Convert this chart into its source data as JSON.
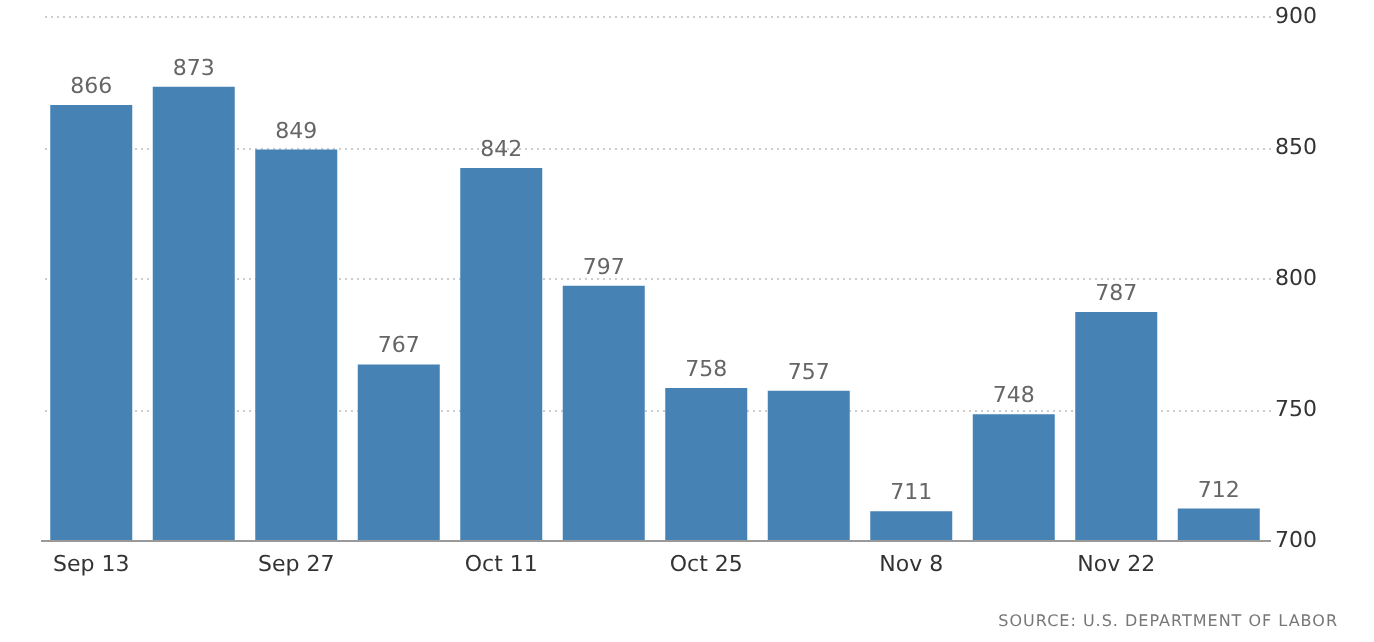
{
  "chart_data": {
    "type": "bar",
    "categories": [
      "Sep 13",
      null,
      "Sep 27",
      null,
      "Oct 11",
      null,
      "Oct 25",
      null,
      "Nov 8",
      null,
      "Nov 22",
      null
    ],
    "values": [
      866,
      873,
      849,
      767,
      842,
      797,
      758,
      757,
      711,
      748,
      787,
      712
    ],
    "color": "#4682b4",
    "ylim": [
      700,
      900
    ],
    "yticks": [
      700,
      750,
      800,
      850,
      900
    ],
    "grid": "y",
    "data_labels": true,
    "annotations": [
      "SOURCE: U.S. DEPARTMENT OF LABOR"
    ]
  }
}
